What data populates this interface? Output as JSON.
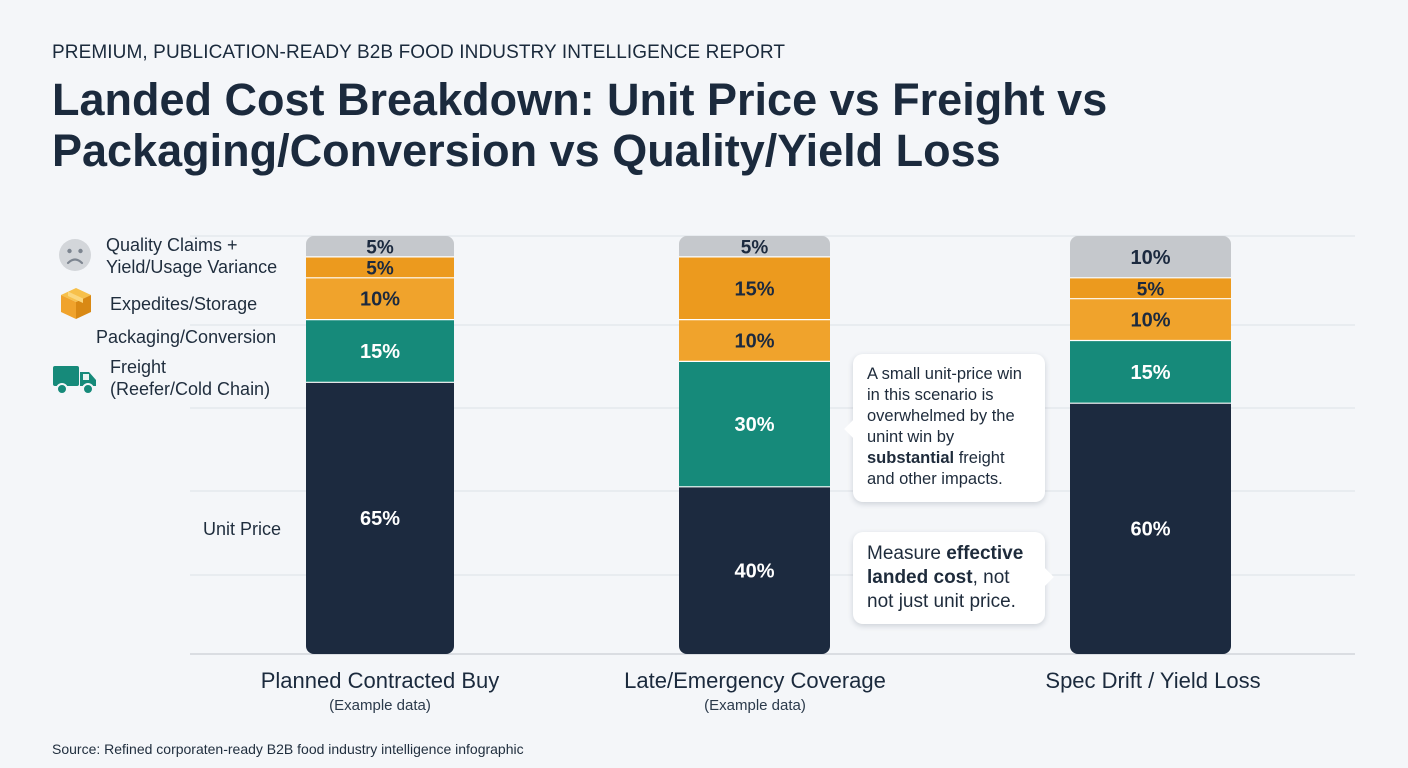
{
  "header": {
    "kicker": "PREMIUM, PUBLICATION-READY B2B FOOD INDUSTRY INTELLIGENCE REPORT",
    "title": "Landed Cost Breakdown: Unit Price vs Freight vs Packaging/Conversion vs Quality/Yield Loss"
  },
  "legend": {
    "quality": {
      "line1": "Quality Claims +",
      "line2": "Yield/Usage Variance",
      "icon": "sad-face-icon"
    },
    "expedites": {
      "label": "Expedites/Storage",
      "icon": "box-icon"
    },
    "packaging": {
      "label": "Packaging/Conversion"
    },
    "freight": {
      "line1": "Freight",
      "line2": "(Reefer/Cold Chain)",
      "icon": "truck-icon"
    },
    "unit_price": {
      "label": "Unit Price"
    }
  },
  "chart_data": {
    "type": "bar",
    "stacked": true,
    "categories": [
      "Planned Contracted Buy",
      "Late/Emergency Coverage",
      "Spec Drift / Yield Loss"
    ],
    "category_notes": [
      "(Example data)",
      "(Example data)",
      ""
    ],
    "unit": "%",
    "ylim": [
      0,
      100
    ],
    "grid": true,
    "series": [
      {
        "name": "Unit Price",
        "color": "#1c2a3f",
        "values": [
          65,
          40,
          60
        ]
      },
      {
        "name": "Freight (Reefer/Cold Chain)",
        "color": "#168a7a",
        "values": [
          15,
          30,
          15
        ]
      },
      {
        "name": "Packaging/Conversion",
        "color": "#f0a32c",
        "values": [
          10,
          10,
          10
        ]
      },
      {
        "name": "Expedites/Storage",
        "color": "#ec9a1e",
        "values": [
          5,
          15,
          5
        ]
      },
      {
        "name": "Quality Claims + Yield/Usage Variance",
        "color": "#c5c8cc",
        "values": [
          5,
          5,
          10
        ]
      }
    ],
    "label_colors": [
      "#ffffff",
      "#ffffff",
      "#1c2a3f",
      "#1c2a3f",
      "#1c2a3f"
    ]
  },
  "callouts": {
    "first": {
      "pre": "A small unit-price win in this scenario is overwhelmed by the unint win by ",
      "bold": "substantial",
      "post": " freight and other impacts."
    },
    "second": {
      "pre": "Measure ",
      "bold": "effective landed cost",
      "post": ", not not just unit price."
    }
  },
  "footer": {
    "source": "Source: Refined corporaten-ready B2B food industry intelligence infographic"
  }
}
